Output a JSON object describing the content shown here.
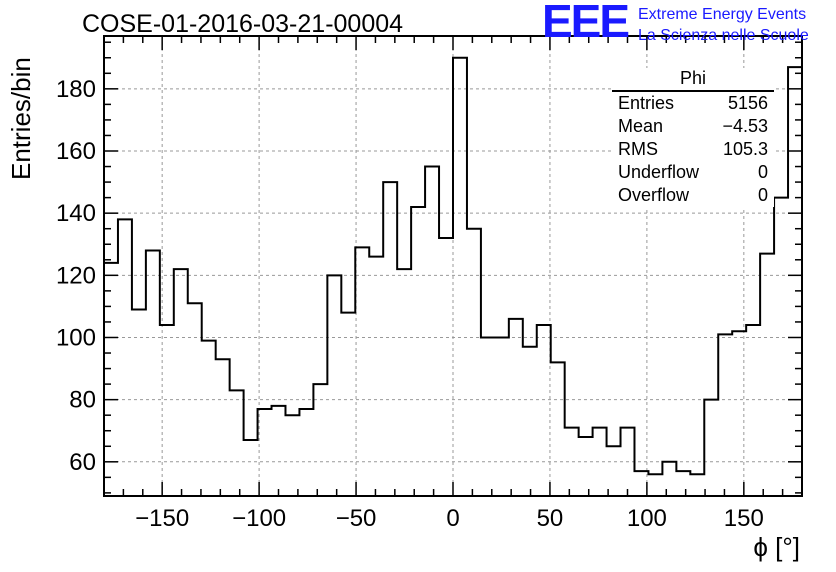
{
  "title": "COSE-01-2016-03-21-00004",
  "logo": {
    "mark": "EEE",
    "line1": "Extreme Energy Events",
    "line2": "La Scienza nelle Scuole"
  },
  "stats": {
    "title": "Phi",
    "rows": [
      {
        "label": "Entries",
        "value": "5156"
      },
      {
        "label": "Mean",
        "value": "−4.53"
      },
      {
        "label": "RMS",
        "value": "105.3"
      },
      {
        "label": "Underflow",
        "value": "0"
      },
      {
        "label": "Overflow",
        "value": "0"
      }
    ]
  },
  "chart_data": {
    "type": "histogram",
    "title": "COSE-01-2016-03-21-00004",
    "xlabel": "ϕ [°]",
    "ylabel": "Entries/bin",
    "xlim": [
      -180,
      180
    ],
    "ylim": [
      49,
      197
    ],
    "grid": true,
    "bin_width": 7.2,
    "x_ticks": [
      -150,
      -100,
      -50,
      0,
      50,
      100,
      150
    ],
    "x_tick_labels": [
      "−150",
      "−100",
      "−50",
      "0",
      "50",
      "100",
      "150"
    ],
    "y_ticks": [
      60,
      80,
      100,
      120,
      140,
      160,
      180
    ],
    "y_tick_labels": [
      "60",
      "80",
      "100",
      "120",
      "140",
      "160",
      "180"
    ],
    "bin_centers": [
      -176.4,
      -169.2,
      -162,
      -154.8,
      -147.6,
      -140.4,
      -133.2,
      -126,
      -118.8,
      -111.6,
      -104.4,
      -97.2,
      -90,
      -82.8,
      -75.6,
      -68.4,
      -61.2,
      -54,
      -46.8,
      -39.6,
      -32.4,
      -25.2,
      -18,
      -10.8,
      -3.6,
      3.6,
      10.8,
      18,
      25.2,
      32.4,
      39.6,
      46.8,
      54,
      61.2,
      68.4,
      75.6,
      82.8,
      90,
      97.2,
      104.4,
      111.6,
      118.8,
      126,
      133.2,
      140.4,
      147.6,
      154.8,
      162,
      169.2,
      176.4
    ],
    "values": [
      124,
      138,
      109,
      128,
      104,
      122,
      111,
      99,
      93,
      83,
      67,
      77,
      78,
      75,
      77,
      85,
      120,
      108,
      129,
      126,
      150,
      122,
      142,
      155,
      132,
      190,
      135,
      100,
      100,
      106,
      97,
      104,
      92,
      71,
      68,
      71,
      65,
      71,
      57,
      56,
      60,
      57,
      56,
      80,
      101,
      102,
      104,
      127,
      145,
      187
    ],
    "legend": "none"
  }
}
